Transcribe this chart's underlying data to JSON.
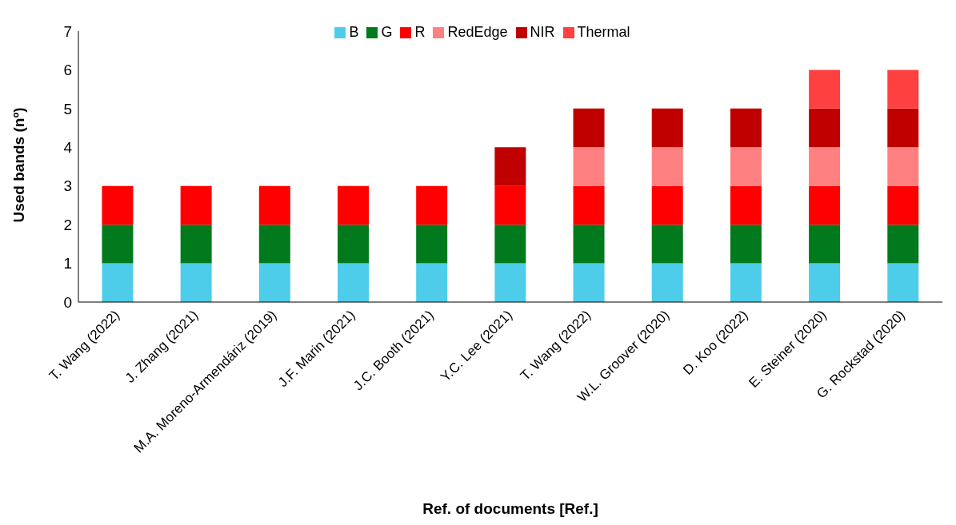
{
  "chart_data": {
    "type": "bar",
    "stacked": true,
    "xlabel": "Ref. of documents [Ref.]",
    "ylabel": "Used bands (nº)",
    "categories": [
      "T. Wang (2022)",
      "J. Zhang (2021)",
      "M.A. Moreno-Armendáriz (2019)",
      "J.F. Marin (2021)",
      "J.C. Booth (2021)",
      "Y.C. Lee (2021)",
      "T. Wang (2022)",
      "W.L. Groover (2020)",
      "D. Koo (2022)",
      "E. Steiner (2020)",
      "G. Rockstad (2020)"
    ],
    "series": [
      {
        "name": "B",
        "color": "#4dcdea",
        "values": [
          1,
          1,
          1,
          1,
          1,
          1,
          1,
          1,
          1,
          1,
          1
        ]
      },
      {
        "name": "G",
        "color": "#007a1c",
        "values": [
          1,
          1,
          1,
          1,
          1,
          1,
          1,
          1,
          1,
          1,
          1
        ]
      },
      {
        "name": "R",
        "color": "#ff0000",
        "values": [
          1,
          1,
          1,
          1,
          1,
          1,
          1,
          1,
          1,
          1,
          1
        ]
      },
      {
        "name": "RedEdge",
        "color": "#ff8080",
        "values": [
          null,
          null,
          null,
          null,
          null,
          null,
          1,
          1,
          1,
          1,
          1
        ]
      },
      {
        "name": "NIR",
        "color": "#c00000",
        "values": [
          null,
          null,
          null,
          null,
          null,
          1,
          1,
          1,
          1,
          1,
          1
        ]
      },
      {
        "name": "Thermal",
        "color": "#ff4040",
        "values": [
          null,
          null,
          null,
          null,
          null,
          null,
          null,
          null,
          null,
          1,
          1
        ]
      }
    ],
    "ylim": [
      0,
      7
    ],
    "yticks": [
      0,
      1,
      2,
      3,
      4,
      5,
      6,
      7
    ],
    "grid": false,
    "legend": "top"
  }
}
